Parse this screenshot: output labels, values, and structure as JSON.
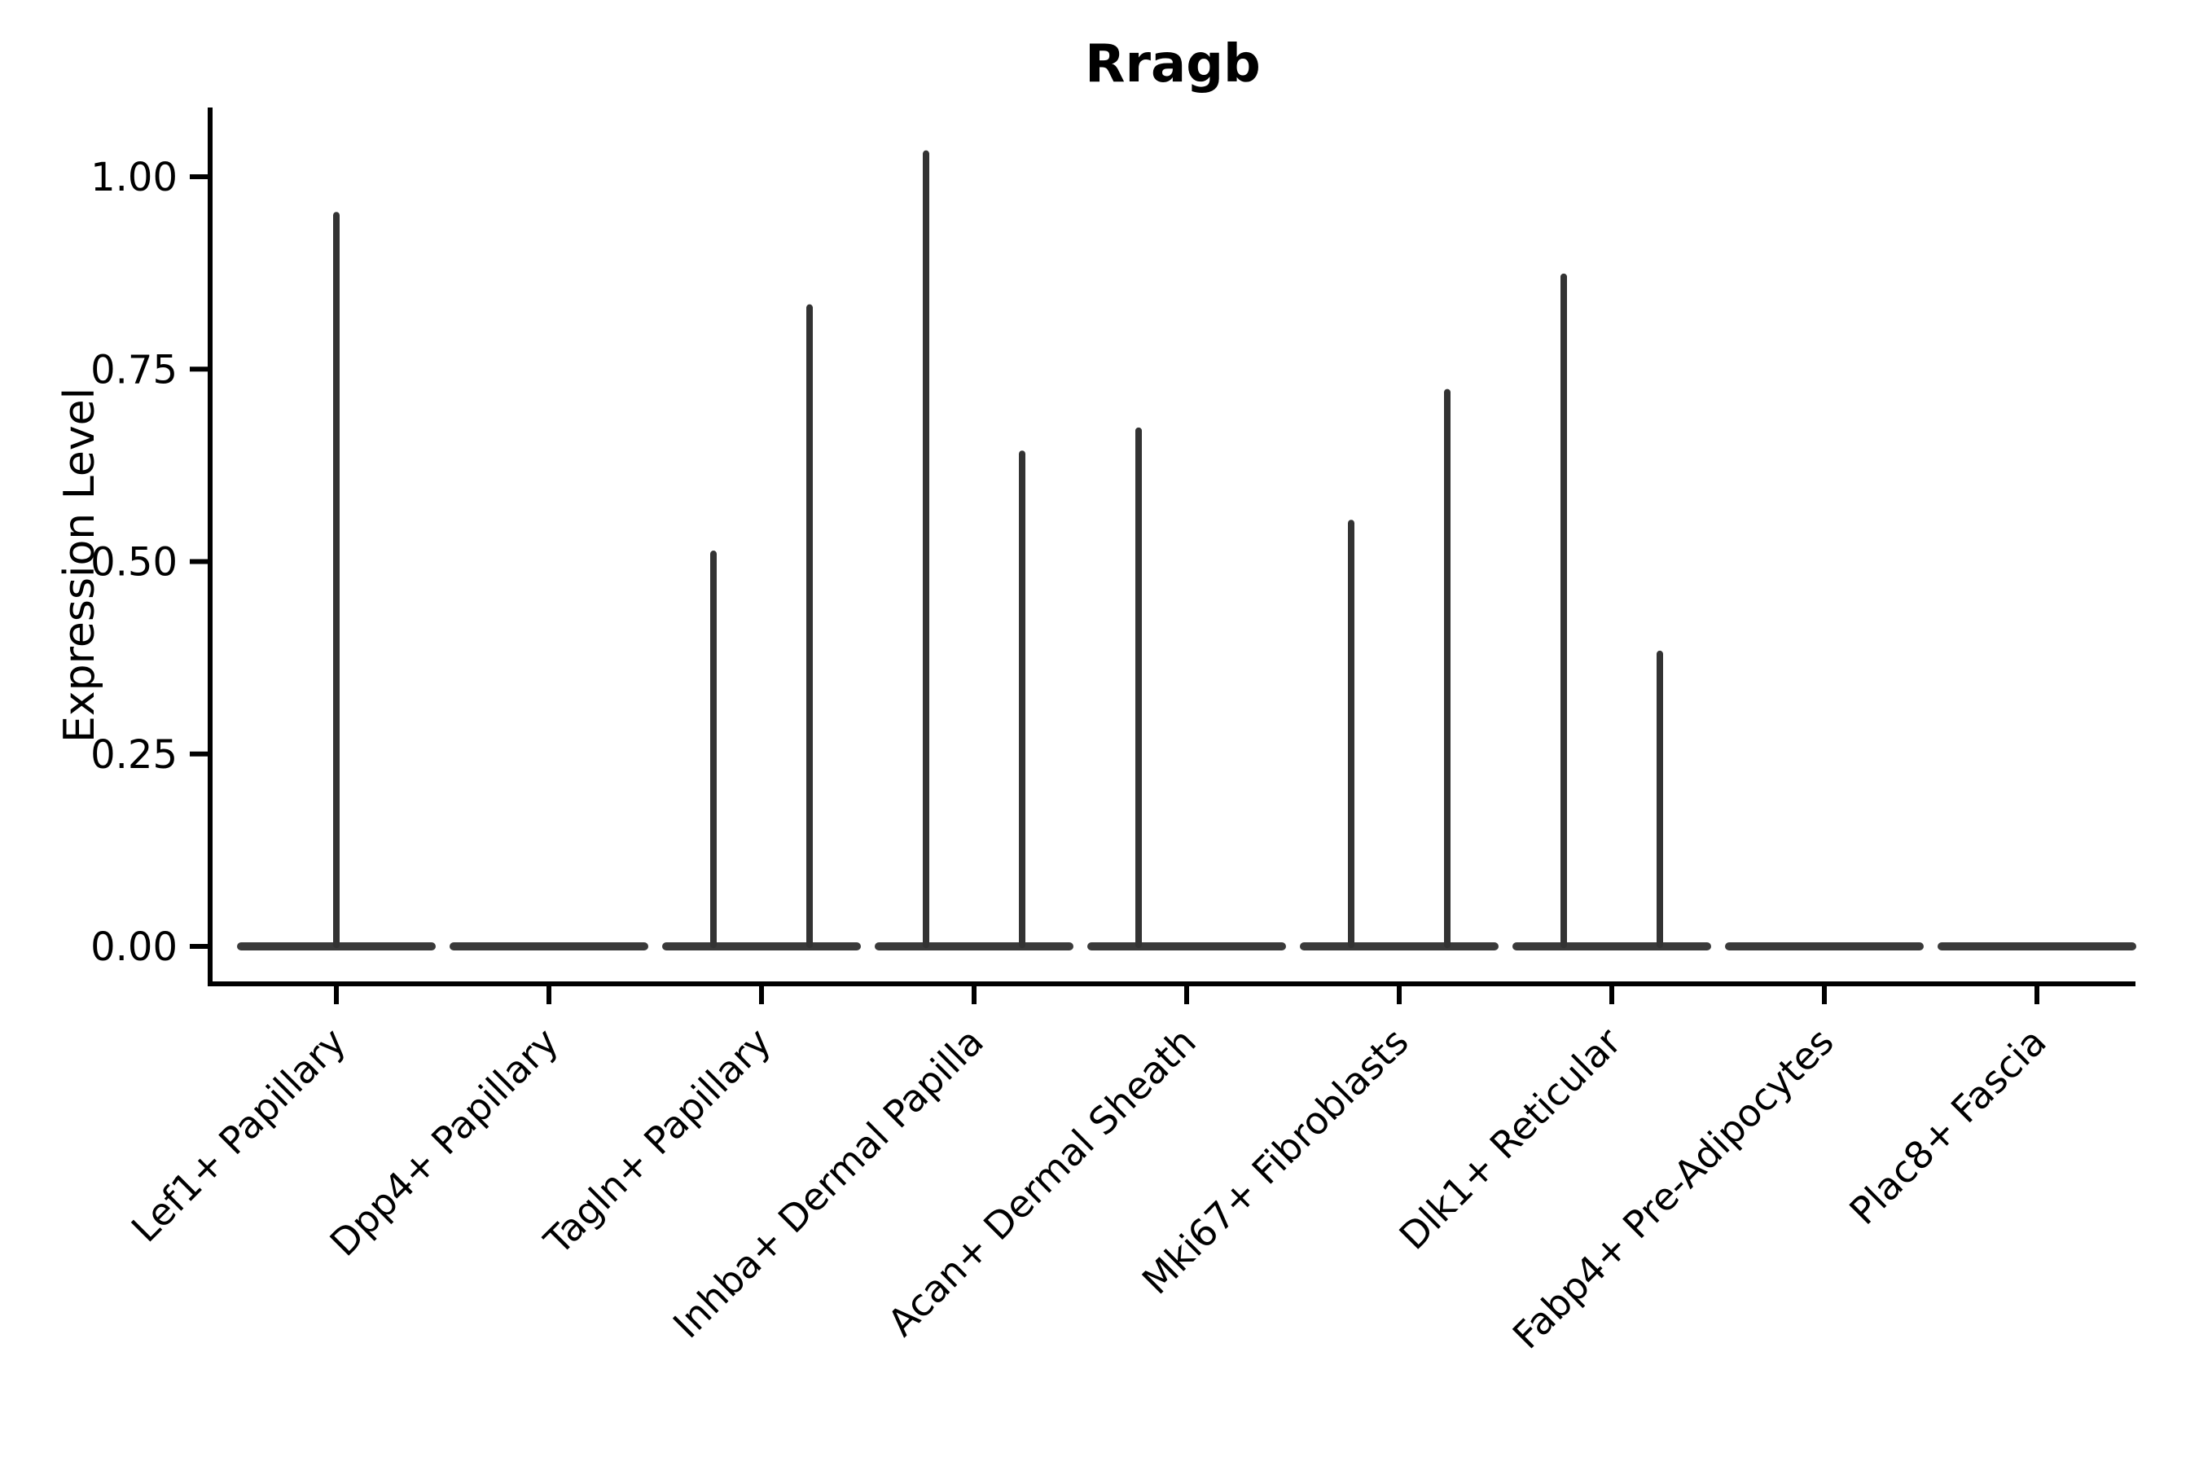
{
  "chart_data": {
    "type": "violin",
    "title": "Rragb",
    "ylabel": "Expression Level",
    "xlabel": "",
    "ylim": [
      0,
      1.08
    ],
    "grid": false,
    "legend": "none",
    "yticks": [
      {
        "value": 0.0,
        "label": "0.00"
      },
      {
        "value": 0.25,
        "label": "0.25"
      },
      {
        "value": 0.5,
        "label": "0.50"
      },
      {
        "value": 0.75,
        "label": "0.75"
      },
      {
        "value": 1.0,
        "label": "1.00"
      }
    ],
    "categories": [
      "Lef1+ Papillary",
      "Dpp4+ Papillary",
      "Tagln+ Papillary",
      "Inhba+ Dermal Papilla",
      "Acan+ Dermal Sheath",
      "Mki67+ Fibroblasts",
      "Dlk1+ Reticular",
      "Fabp4+ Pre-Adipocytes",
      "Plac8+ Fascia"
    ],
    "violins": [
      {
        "category": "Lef1+ Papillary",
        "base_value": 0.0,
        "spikes": [
          {
            "pos": "center",
            "max": 0.95
          }
        ]
      },
      {
        "category": "Dpp4+ Papillary",
        "base_value": 0.0,
        "spikes": []
      },
      {
        "category": "Tagln+ Papillary",
        "base_value": 0.0,
        "spikes": [
          {
            "pos": "left",
            "max": 0.51
          },
          {
            "pos": "right",
            "max": 0.83
          }
        ]
      },
      {
        "category": "Inhba+ Dermal Papilla",
        "base_value": 0.0,
        "spikes": [
          {
            "pos": "left",
            "max": 1.03
          },
          {
            "pos": "right",
            "max": 0.64
          }
        ]
      },
      {
        "category": "Acan+ Dermal Sheath",
        "base_value": 0.0,
        "spikes": [
          {
            "pos": "left",
            "max": 0.67
          }
        ]
      },
      {
        "category": "Mki67+ Fibroblasts",
        "base_value": 0.0,
        "spikes": [
          {
            "pos": "left",
            "max": 0.55
          },
          {
            "pos": "right",
            "max": 0.72
          }
        ]
      },
      {
        "category": "Dlk1+ Reticular",
        "base_value": 0.0,
        "spikes": [
          {
            "pos": "left",
            "max": 0.87
          },
          {
            "pos": "right",
            "max": 0.38
          }
        ]
      },
      {
        "category": "Fabp4+ Pre-Adipocytes",
        "base_value": 0.0,
        "spikes": []
      },
      {
        "category": "Plac8+ Fascia",
        "base_value": 0.0,
        "spikes": []
      }
    ],
    "colors": {
      "violin": "#333333",
      "violin_base": "#3a3a3a",
      "axis": "#000000",
      "text": "#000000",
      "background": "#ffffff"
    }
  }
}
